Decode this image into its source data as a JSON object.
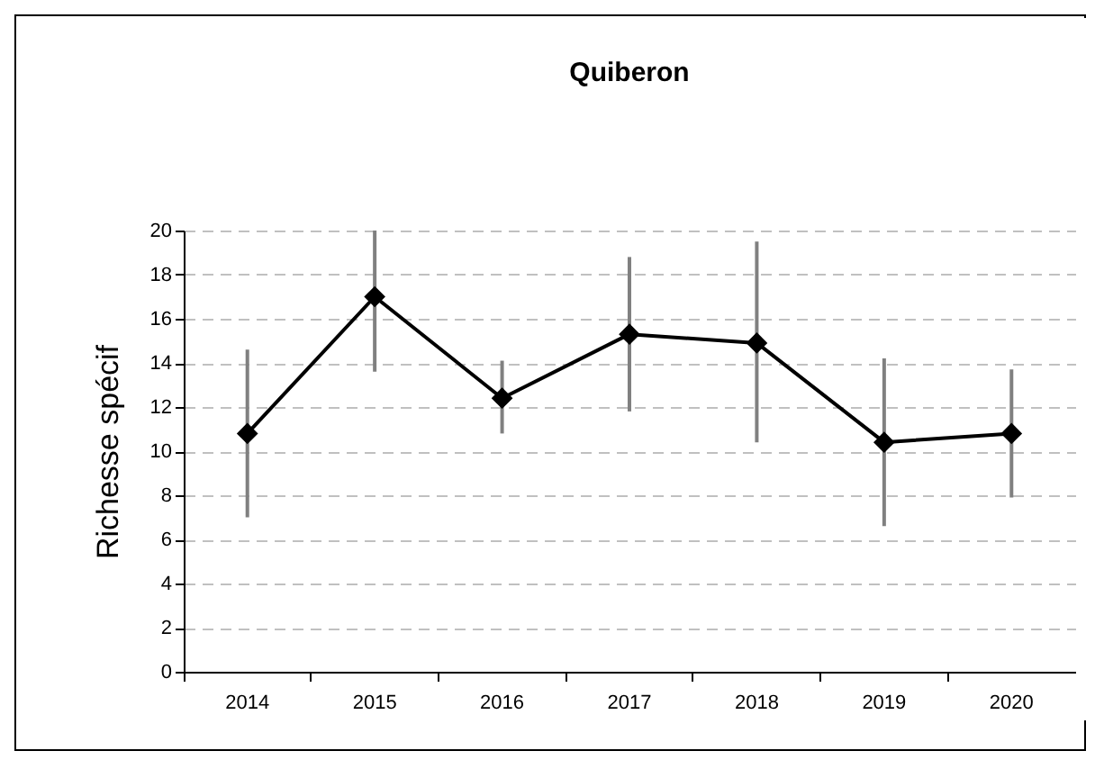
{
  "chart_data": {
    "type": "line",
    "title": "Quiberon",
    "ylabel": "Richesse spécif",
    "categories": [
      "2014",
      "2015",
      "2016",
      "2017",
      "2018",
      "2019",
      "2020"
    ],
    "series": [
      {
        "color": "#000000",
        "values": [
          10.8,
          17.0,
          12.4,
          15.3,
          14.9,
          10.4,
          10.8
        ],
        "errors": [
          [
            7.0,
            14.6
          ],
          [
            13.6,
            20.0
          ],
          [
            10.8,
            14.1
          ],
          [
            11.8,
            18.8
          ],
          [
            10.4,
            19.5
          ],
          [
            6.6,
            14.2
          ],
          [
            7.9,
            13.7
          ]
        ]
      }
    ],
    "ylim": [
      0,
      20
    ],
    "yticks": [
      0,
      2,
      4,
      6,
      8,
      10,
      12,
      14,
      16,
      18,
      20
    ],
    "grid": "y",
    "marker": "diamond",
    "line_style": "solid",
    "legend": false
  }
}
